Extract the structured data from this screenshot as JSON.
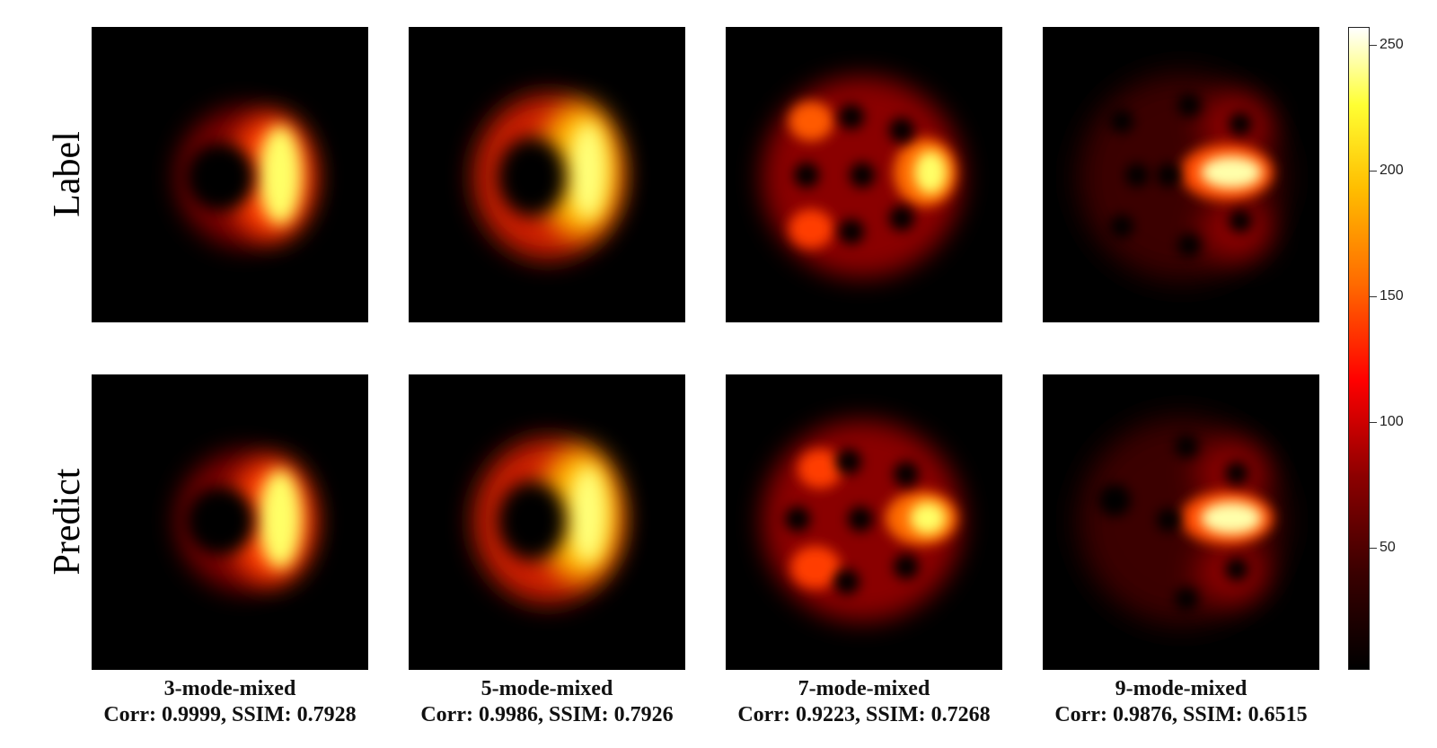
{
  "rows": {
    "top_label": "Label",
    "bottom_label": "Predict"
  },
  "panels": [
    {
      "title": "3-mode-mixed",
      "metrics": "Corr: 0.9999, SSIM: 0.7928"
    },
    {
      "title": "5-mode-mixed",
      "metrics": "Corr: 0.9986, SSIM: 0.7926"
    },
    {
      "title": "7-mode-mixed",
      "metrics": "Corr: 0.9223, SSIM: 0.7268"
    },
    {
      "title": "9-mode-mixed",
      "metrics": "Corr: 0.9876, SSIM: 0.6515"
    }
  ],
  "colorbar": {
    "colormap": "hot",
    "ticks": [
      "250",
      "200",
      "150",
      "100",
      "50"
    ],
    "colors": {
      "black": "#000000",
      "red": "#ff0000",
      "yellow": "#ffff33",
      "white": "#ffffff"
    }
  }
}
